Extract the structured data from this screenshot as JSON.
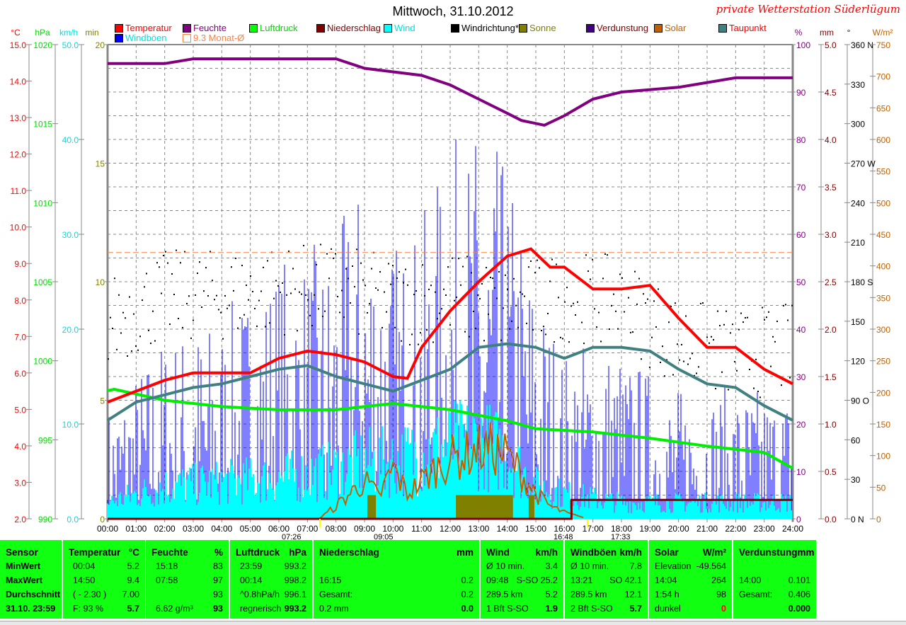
{
  "header": {
    "title": "Mittwoch, 31.10.2012",
    "brand": "private Wetterstation Süderlügum"
  },
  "legend": [
    {
      "label": "Temperatur",
      "box": "#ff0000",
      "text": "#ff0000"
    },
    {
      "label": "Feuchte",
      "box": "#800080",
      "text": "#800080"
    },
    {
      "label": "Luftdruck",
      "box": "#00ff00",
      "text": "#00dd00"
    },
    {
      "label": "Niederschlag",
      "box": "#800000",
      "text": "#800000"
    },
    {
      "label": "Wind",
      "box": "#00ffff",
      "text": "#00e0e0"
    },
    {
      "label": "Windrichtung*",
      "box": "#000000",
      "text": "#000000"
    },
    {
      "label": "Sonne",
      "box": "#808000",
      "text": "#808000"
    },
    {
      "label": "Verdunstung",
      "box": "#400080",
      "text": "#800000"
    },
    {
      "label": "Solar",
      "box": "#c06000",
      "text": "#c06000"
    },
    {
      "label": "Taupunkt",
      "box": "#408080",
      "text": "#ff0000"
    },
    {
      "label": "Windböen",
      "box": "#0000ff",
      "text": "#00e0e0"
    },
    {
      "label": "9.3 Monat-Ø",
      "box": "#ffffff",
      "text": "#ff8040"
    }
  ],
  "sun_times": {
    "sunrise": "07:26",
    "moonrise": "09:05",
    "sunset": "16:48",
    "moonset": "17:33"
  },
  "chart_data": {
    "type": "line",
    "title": "Mittwoch, 31.10.2012",
    "x_ticks": [
      "00:00",
      "01:00",
      "02:00",
      "03:00",
      "04:00",
      "05:00",
      "06:00",
      "07:00",
      "08:00",
      "09:00",
      "10:00",
      "11:00",
      "12:00",
      "13:00",
      "14:00",
      "15:00",
      "16:00",
      "17:00",
      "18:00",
      "19:00",
      "20:00",
      "21:00",
      "22:00",
      "23:00",
      "24:00"
    ],
    "axes": {
      "temp": {
        "unit": "°C",
        "range": [
          2,
          15
        ],
        "ticks": [
          "15.0",
          "14.0",
          "13.0",
          "12.0",
          "11.0",
          "10.0",
          "9.0",
          "8.0",
          "7.0",
          "6.0",
          "5.0",
          "4.0",
          "3.0",
          "2.0"
        ],
        "color": "#ff0000"
      },
      "pressure": {
        "unit": "hPa",
        "range": [
          990,
          1020
        ],
        "ticks": [
          "1020",
          "1015",
          "1010",
          "1005",
          "1000",
          "995",
          "990"
        ],
        "color": "#00dd00"
      },
      "wind": {
        "unit": "km/h",
        "range": [
          0,
          50
        ],
        "ticks": [
          "50.0",
          "40.0",
          "30.0",
          "20.0",
          "10.0",
          "0.0"
        ],
        "color": "#00e0e0"
      },
      "sun": {
        "unit": "min",
        "range": [
          0,
          20
        ],
        "ticks": [
          "20",
          "15",
          "10",
          "5",
          "0"
        ],
        "color": "#808000"
      },
      "humidity": {
        "unit": "%",
        "range": [
          0,
          100
        ],
        "ticks": [
          "100",
          "90",
          "80",
          "70",
          "60",
          "50",
          "40",
          "30",
          "20",
          "10",
          "0"
        ],
        "color": "#800080"
      },
      "rain": {
        "unit": "mm",
        "range": [
          0,
          5
        ],
        "ticks": [
          "5.0",
          "4.5",
          "4.0",
          "3.5",
          "3.0",
          "2.5",
          "2.0",
          "1.5",
          "1.0",
          "0.5",
          "0.0"
        ],
        "color": "#800000"
      },
      "direction": {
        "unit": "°",
        "range": [
          0,
          360
        ],
        "ticks": [
          "360 N",
          "330",
          "300",
          "270 W",
          "240",
          "210",
          "180 S",
          "150",
          "120",
          "90  O",
          "60",
          "30",
          "0   N"
        ],
        "color": "#000000"
      },
      "solar": {
        "unit": "W/m²",
        "range": [
          0,
          750
        ],
        "ticks": [
          "750",
          "700",
          "650",
          "600",
          "550",
          "500",
          "450",
          "400",
          "350",
          "300",
          "250",
          "200",
          "150",
          "100",
          "50",
          "0"
        ],
        "color": "#c06000"
      }
    },
    "monthly_avg_temp": 9.3,
    "series": [
      {
        "name": "Temperatur",
        "axis": "temp",
        "color": "#ff0000",
        "x": [
          0,
          1,
          2,
          3,
          4,
          5,
          6,
          7,
          8,
          9,
          10,
          10.5,
          11,
          12,
          13,
          14,
          14.83,
          15.5,
          16,
          17,
          18,
          19,
          20,
          21,
          22,
          23,
          24
        ],
        "y": [
          5.2,
          5.5,
          5.8,
          6.0,
          6.0,
          6.0,
          6.4,
          6.6,
          6.5,
          6.3,
          5.9,
          5.85,
          6.7,
          7.7,
          8.5,
          9.2,
          9.4,
          8.9,
          8.9,
          8.3,
          8.3,
          8.4,
          7.5,
          6.7,
          6.7,
          6.1,
          5.7
        ]
      },
      {
        "name": "Feuchte",
        "axis": "humidity",
        "color": "#800080",
        "x": [
          0,
          2,
          3,
          8,
          9,
          11,
          12,
          13,
          14,
          14.5,
          15.3,
          16,
          17,
          18,
          20,
          21,
          22,
          23,
          24
        ],
        "y": [
          96,
          96,
          97,
          97,
          95,
          93.5,
          91.5,
          88.5,
          85.5,
          84,
          83,
          85,
          88.5,
          90,
          91,
          92,
          93,
          93,
          93
        ]
      },
      {
        "name": "Luftdruck",
        "axis": "pressure",
        "color": "#00ee00",
        "x": [
          0,
          0.23,
          2,
          4,
          6,
          8,
          9,
          10,
          11,
          12,
          14,
          15,
          17,
          19,
          21,
          23,
          24
        ],
        "y": [
          998.1,
          998.2,
          997.5,
          997.1,
          996.9,
          996.9,
          997.1,
          997.3,
          997.1,
          996.9,
          996.2,
          995.7,
          995.5,
          995.1,
          994.6,
          994.2,
          993.2
        ]
      },
      {
        "name": "Taupunkt",
        "axis": "temp",
        "color": "#408080",
        "x": [
          0,
          1,
          2,
          3,
          4,
          5,
          6,
          7,
          8,
          9,
          10,
          11,
          12,
          13,
          14,
          15,
          16,
          17,
          18,
          19,
          20,
          21,
          22,
          23,
          24
        ],
        "y": [
          4.7,
          5.2,
          5.4,
          5.6,
          5.7,
          5.9,
          6.1,
          6.2,
          5.9,
          5.7,
          5.5,
          5.8,
          6.1,
          6.7,
          6.8,
          6.7,
          6.4,
          6.7,
          6.7,
          6.6,
          6.1,
          5.7,
          5.6,
          5.1,
          4.7
        ]
      },
      {
        "name": "Niederschlag",
        "axis": "rain",
        "color": "#800000",
        "x": [
          0,
          16.25,
          16.25,
          24
        ],
        "y": [
          0,
          0,
          0.2,
          0.2
        ]
      }
    ],
    "wind_avg_kmh": {
      "x": [
        0,
        2,
        4,
        6,
        8,
        9,
        10,
        11,
        12,
        13,
        14,
        15,
        16,
        17,
        18,
        20,
        22,
        24
      ],
      "y": [
        2,
        4,
        4.5,
        5,
        6,
        7,
        7,
        8,
        9,
        9.5,
        8,
        4,
        3,
        2.5,
        2,
        2,
        2,
        2
      ]
    },
    "gust_peak_kmh": {
      "x": [
        0,
        2,
        4,
        6,
        8,
        9,
        10,
        11,
        12,
        13,
        14,
        15,
        16,
        17,
        18,
        20,
        22,
        24
      ],
      "y": [
        12,
        20,
        22,
        28,
        30,
        38,
        30,
        32,
        40,
        42,
        38,
        26,
        18,
        20,
        18,
        14,
        14,
        14
      ]
    },
    "solar_wm2": {
      "x": [
        7.4,
        8,
        8.5,
        9,
        9.5,
        10,
        10.5,
        11,
        11.5,
        12,
        12.5,
        13,
        13.5,
        14,
        14.5,
        15,
        15.5,
        16,
        16.8
      ],
      "y": [
        0,
        20,
        40,
        60,
        35,
        80,
        40,
        60,
        80,
        95,
        100,
        110,
        110,
        100,
        70,
        40,
        20,
        10,
        0
      ]
    },
    "sun_min": {
      "blocks": [
        [
          9.1,
          9.4,
          1
        ],
        [
          12.2,
          14.2,
          1
        ],
        [
          14.75,
          14.95,
          1
        ]
      ]
    },
    "direction_deg_hourly": {
      "x": [
        0,
        2,
        4,
        6,
        8,
        10,
        12,
        14,
        16,
        18,
        20,
        22,
        24
      ],
      "y": [
        150,
        170,
        170,
        175,
        175,
        165,
        170,
        160,
        170,
        165,
        135,
        125,
        130
      ]
    }
  },
  "table": {
    "sensor": {
      "h": "Sensor",
      "r1": "MinWert",
      "r2": "MaxWert",
      "r3": "Durchschnitt",
      "r4": "31.10. 23:59"
    },
    "temp": {
      "h": "Temperatur",
      "u": "°C",
      "r1a": "00:04",
      "r1b": "5.2",
      "r2a": "14:50",
      "r2b": "9.4",
      "r3a": "( - 2.30 )",
      "r3b": "7.00",
      "r4a": "F: 93 %",
      "r4b": "5.7"
    },
    "hum": {
      "h": "Feuchte",
      "u": "%",
      "r1a": "15:18",
      "r1b": "83",
      "r2a": "07:58",
      "r2b": "97",
      "r3a": "",
      "r3b": "93",
      "r4a": "6.62 g/m³",
      "r4b": "93"
    },
    "press": {
      "h": "Luftdruck",
      "u": "hPa",
      "r1a": "23:59",
      "r1b": "993.2",
      "r2a": "00:14",
      "r2b": "998.2",
      "r3a": "^0.8hPa/h",
      "r3b": "996.1",
      "r4a": "regnerisch",
      "r4b": "993.2"
    },
    "rain": {
      "h": "Niederschlag",
      "u": "mm",
      "r1a": "",
      "r1b": "",
      "r2a": "16:15",
      "r2b": "0.2",
      "r3a": "Gesamt:",
      "r3b": "0.2",
      "r4a": "0.2 mm",
      "r4b": "0.0"
    },
    "wind": {
      "h": "Wind",
      "u": "km/h",
      "r1a": "Ø 10 min.",
      "r1b": "3.4",
      "r2a": "09:48",
      "r2b": "S-SO 25.2",
      "r3a": "289.5 km",
      "r3b": "5.2",
      "r4a": "1 Bft S-SO",
      "r4b": "1.9"
    },
    "gust": {
      "h": "Windböen",
      "u": "km/h",
      "r1a": "Ø 10 min.",
      "r1b": "7.8",
      "r2a": "13:21",
      "r2b": "SO 42.1",
      "r3a": "289.5 km",
      "r3b": "12.1",
      "r4a": "2 Bft S-SO",
      "r4b": "5.7"
    },
    "solar": {
      "h": "Solar",
      "u": "W/m²",
      "r1a": "Elevation",
      "r1b": "-49.564",
      "r2a": "14:04",
      "r2b": "264",
      "r3a": "1:54 h",
      "r3b": "98",
      "r4a": "dunkel",
      "r4b": "0"
    },
    "evap": {
      "h": "Verdunstung",
      "u": "mm",
      "r1a": "",
      "r1b": "",
      "r2a": "14:00",
      "r2b": "0.101",
      "r3a": "Gesamt:",
      "r3b": "0.406",
      "r4a": "",
      "r4b": "0.000"
    }
  }
}
